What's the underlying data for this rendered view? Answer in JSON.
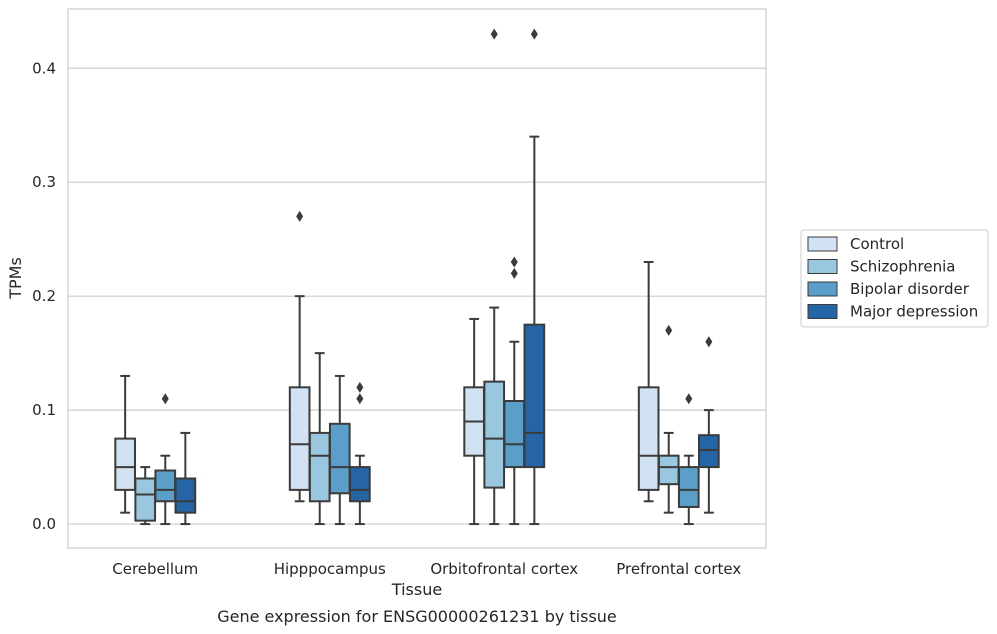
{
  "chart_data": {
    "type": "boxplot",
    "caption": "Gene expression for ENSG00000261231 by tissue",
    "xlabel": "Tissue",
    "ylabel": "TPMs",
    "ylim": [
      -0.021,
      0.452
    ],
    "yticks": [
      "0.0",
      "0.1",
      "0.2",
      "0.3",
      "0.4"
    ],
    "ytick_values": [
      0.0,
      0.1,
      0.2,
      0.3,
      0.4
    ],
    "grid": "horizontal",
    "legend_position": "right",
    "categories": [
      "Cerebellum",
      "Hipppocampus",
      "Orbitofrontal cortex",
      "Prefrontal cortex"
    ],
    "series": [
      {
        "name": "Control",
        "color": "#d1e2f2",
        "boxes": [
          {
            "whisker_low": 0.01,
            "q1": 0.03,
            "median": 0.05,
            "q3": 0.075,
            "whisker_high": 0.13,
            "outliers": []
          },
          {
            "whisker_low": 0.02,
            "q1": 0.03,
            "median": 0.07,
            "q3": 0.12,
            "whisker_high": 0.2,
            "outliers": [
              0.27
            ]
          },
          {
            "whisker_low": 0.0,
            "q1": 0.06,
            "median": 0.09,
            "q3": 0.12,
            "whisker_high": 0.18,
            "outliers": []
          },
          {
            "whisker_low": 0.02,
            "q1": 0.03,
            "median": 0.06,
            "q3": 0.12,
            "whisker_high": 0.23,
            "outliers": []
          }
        ]
      },
      {
        "name": "Schizophrenia",
        "color": "#9ac7e0",
        "boxes": [
          {
            "whisker_low": 0.0,
            "q1": 0.003,
            "median": 0.026,
            "q3": 0.04,
            "whisker_high": 0.05,
            "outliers": []
          },
          {
            "whisker_low": 0.0,
            "q1": 0.02,
            "median": 0.06,
            "q3": 0.08,
            "whisker_high": 0.15,
            "outliers": []
          },
          {
            "whisker_low": 0.0,
            "q1": 0.032,
            "median": 0.075,
            "q3": 0.125,
            "whisker_high": 0.19,
            "outliers": [
              0.43
            ]
          },
          {
            "whisker_low": 0.01,
            "q1": 0.035,
            "median": 0.05,
            "q3": 0.06,
            "whisker_high": 0.08,
            "outliers": [
              0.17
            ]
          }
        ]
      },
      {
        "name": "Bipolar disorder",
        "color": "#5a9ec9",
        "boxes": [
          {
            "whisker_low": 0.0,
            "q1": 0.02,
            "median": 0.03,
            "q3": 0.047,
            "whisker_high": 0.06,
            "outliers": [
              0.11
            ]
          },
          {
            "whisker_low": 0.0,
            "q1": 0.027,
            "median": 0.05,
            "q3": 0.088,
            "whisker_high": 0.13,
            "outliers": []
          },
          {
            "whisker_low": 0.0,
            "q1": 0.05,
            "median": 0.07,
            "q3": 0.108,
            "whisker_high": 0.16,
            "outliers": [
              0.22,
              0.23
            ]
          },
          {
            "whisker_low": 0.0,
            "q1": 0.015,
            "median": 0.03,
            "q3": 0.05,
            "whisker_high": 0.06,
            "outliers": [
              0.11
            ]
          }
        ]
      },
      {
        "name": "Major depression",
        "color": "#2565a6",
        "boxes": [
          {
            "whisker_low": 0.0,
            "q1": 0.01,
            "median": 0.02,
            "q3": 0.04,
            "whisker_high": 0.08,
            "outliers": []
          },
          {
            "whisker_low": 0.0,
            "q1": 0.02,
            "median": 0.03,
            "q3": 0.05,
            "whisker_high": 0.06,
            "outliers": [
              0.11,
              0.12
            ]
          },
          {
            "whisker_low": 0.0,
            "q1": 0.05,
            "median": 0.08,
            "q3": 0.175,
            "whisker_high": 0.34,
            "outliers": [
              0.43
            ]
          },
          {
            "whisker_low": 0.01,
            "q1": 0.05,
            "median": 0.065,
            "q3": 0.078,
            "whisker_high": 0.1,
            "outliers": [
              0.16
            ]
          }
        ]
      }
    ]
  }
}
